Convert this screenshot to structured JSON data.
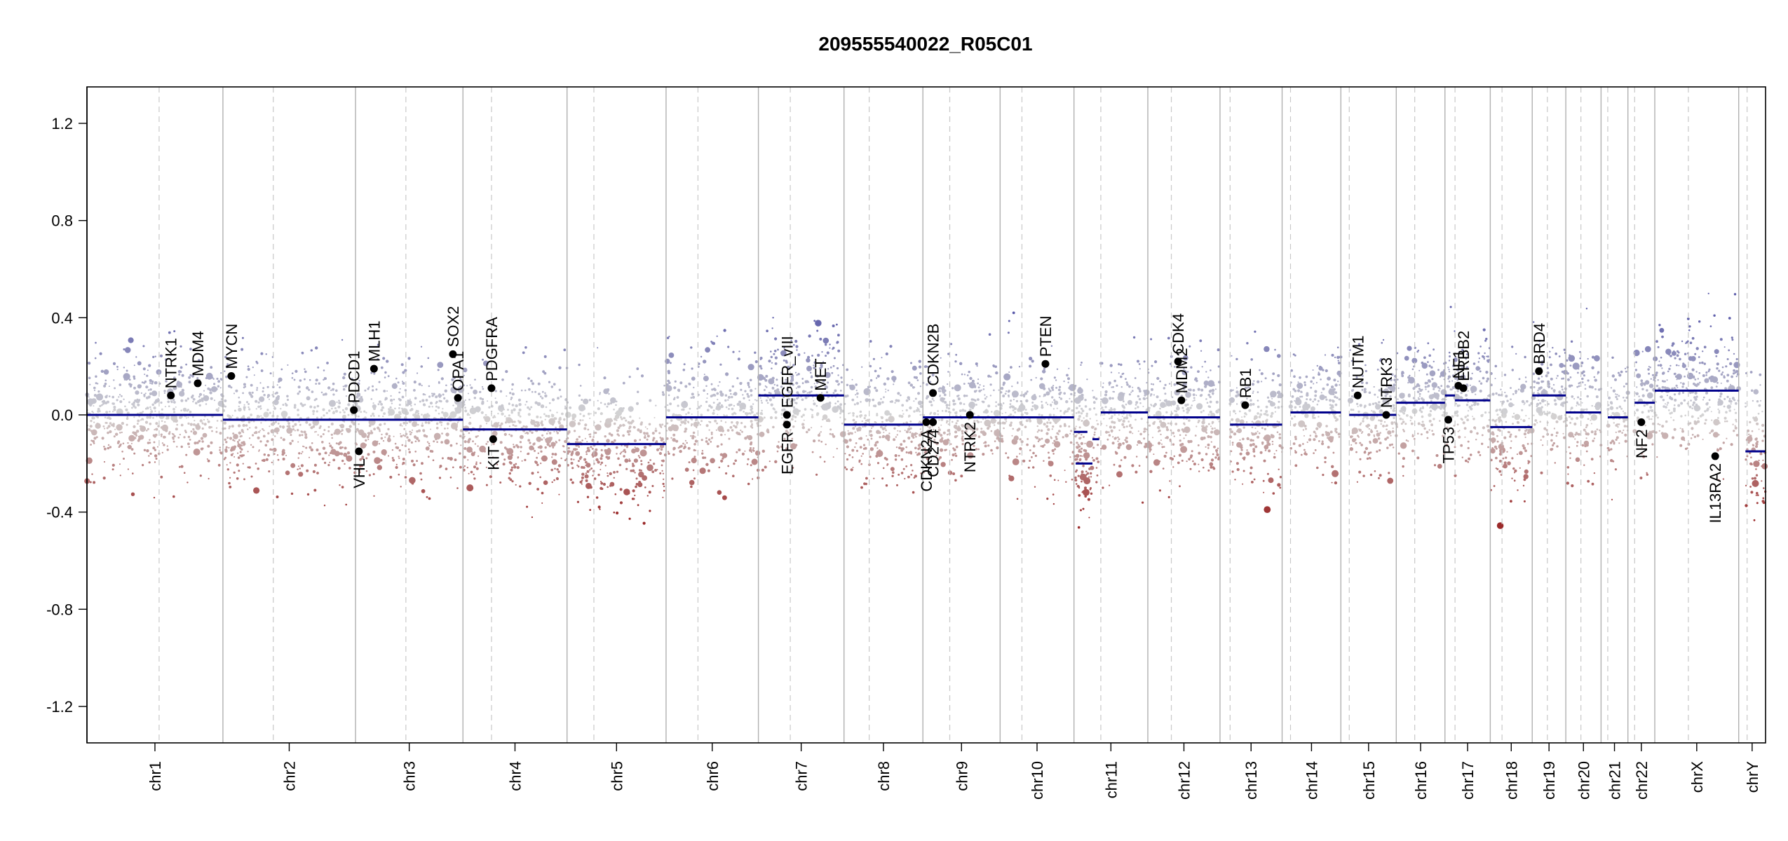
{
  "chart_data": {
    "type": "scatter",
    "subtype": "copy-number-variation-plot",
    "title": "209555540022_R05C01",
    "xlabel": "",
    "ylabel": "",
    "ylim": [
      -1.35,
      1.35
    ],
    "yticks": [
      -1.2,
      -0.8,
      -0.4,
      0.0,
      0.4,
      0.8,
      1.2
    ],
    "ytick_labels": [
      "-1.2",
      "-0.8",
      "-0.4",
      "0.0",
      "0.4",
      "0.8",
      "1.2"
    ],
    "grid": false,
    "colors": {
      "gain": "#5b5baa",
      "neutral": "#d4d4d4",
      "loss": "#9b2a2a",
      "segment": "#00008b",
      "gene_point": "#000000",
      "chr_divider": "#b0b0b0",
      "centromere": "#c8c8c8"
    },
    "chromosomes": [
      {
        "name": "chr1",
        "start": 0.0,
        "end": 0.081,
        "centromere": 0.043,
        "segments": [
          {
            "from": 0.0,
            "to": 0.081,
            "value": 0.0
          }
        ]
      },
      {
        "name": "chr2",
        "start": 0.081,
        "end": 0.16,
        "centromere": 0.111,
        "segments": [
          {
            "from": 0.081,
            "to": 0.16,
            "value": -0.02
          }
        ]
      },
      {
        "name": "chr3",
        "start": 0.16,
        "end": 0.224,
        "centromere": 0.19,
        "segments": [
          {
            "from": 0.16,
            "to": 0.224,
            "value": -0.02
          }
        ]
      },
      {
        "name": "chr4",
        "start": 0.224,
        "end": 0.286,
        "centromere": 0.241,
        "segments": [
          {
            "from": 0.224,
            "to": 0.286,
            "value": -0.06
          }
        ]
      },
      {
        "name": "chr5",
        "start": 0.286,
        "end": 0.345,
        "centromere": 0.302,
        "segments": [
          {
            "from": 0.286,
            "to": 0.345,
            "value": -0.12
          }
        ]
      },
      {
        "name": "chr6",
        "start": 0.345,
        "end": 0.4,
        "centromere": 0.364,
        "segments": [
          {
            "from": 0.345,
            "to": 0.4,
            "value": -0.01
          }
        ]
      },
      {
        "name": "chr7",
        "start": 0.4,
        "end": 0.451,
        "centromere": 0.419,
        "segments": [
          {
            "from": 0.4,
            "to": 0.451,
            "value": 0.08
          }
        ]
      },
      {
        "name": "chr8",
        "start": 0.451,
        "end": 0.498,
        "centromere": 0.466,
        "segments": [
          {
            "from": 0.451,
            "to": 0.498,
            "value": -0.04
          }
        ]
      },
      {
        "name": "chr9",
        "start": 0.498,
        "end": 0.544,
        "centromere": 0.514,
        "segments": [
          {
            "from": 0.498,
            "to": 0.544,
            "value": -0.01
          }
        ]
      },
      {
        "name": "chr10",
        "start": 0.544,
        "end": 0.588,
        "centromere": 0.557,
        "segments": [
          {
            "from": 0.544,
            "to": 0.588,
            "value": -0.01
          }
        ]
      },
      {
        "name": "chr11",
        "start": 0.588,
        "end": 0.632,
        "centromere": 0.604,
        "segments": [
          {
            "from": 0.588,
            "to": 0.596,
            "value": -0.07
          },
          {
            "from": 0.589,
            "to": 0.599,
            "value": -0.2
          },
          {
            "from": 0.599,
            "to": 0.603,
            "value": -0.1
          },
          {
            "from": 0.604,
            "to": 0.632,
            "value": 0.01
          }
        ]
      },
      {
        "name": "chr12",
        "start": 0.632,
        "end": 0.675,
        "centromere": 0.646,
        "segments": [
          {
            "from": 0.632,
            "to": 0.675,
            "value": -0.01
          }
        ]
      },
      {
        "name": "chr13",
        "start": 0.675,
        "end": 0.712,
        "centromere": 0.681,
        "segments": [
          {
            "from": 0.681,
            "to": 0.712,
            "value": -0.04
          }
        ]
      },
      {
        "name": "chr14",
        "start": 0.712,
        "end": 0.747,
        "centromere": 0.717,
        "segments": [
          {
            "from": 0.717,
            "to": 0.747,
            "value": 0.01
          }
        ]
      },
      {
        "name": "chr15",
        "start": 0.747,
        "end": 0.78,
        "centromere": 0.752,
        "segments": [
          {
            "from": 0.752,
            "to": 0.78,
            "value": 0.0
          }
        ]
      },
      {
        "name": "chr16",
        "start": 0.78,
        "end": 0.809,
        "centromere": 0.791,
        "segments": [
          {
            "from": 0.78,
            "to": 0.809,
            "value": 0.05
          }
        ]
      },
      {
        "name": "chr17",
        "start": 0.809,
        "end": 0.836,
        "centromere": 0.815,
        "segments": [
          {
            "from": 0.809,
            "to": 0.815,
            "value": 0.08
          },
          {
            "from": 0.815,
            "to": 0.836,
            "value": 0.06
          }
        ]
      },
      {
        "name": "chr18",
        "start": 0.836,
        "end": 0.861,
        "centromere": 0.843,
        "segments": [
          {
            "from": 0.836,
            "to": 0.861,
            "value": -0.05
          }
        ]
      },
      {
        "name": "chr19",
        "start": 0.861,
        "end": 0.881,
        "centromere": 0.87,
        "segments": [
          {
            "from": 0.861,
            "to": 0.881,
            "value": 0.08
          }
        ]
      },
      {
        "name": "chr20",
        "start": 0.881,
        "end": 0.902,
        "centromere": 0.89,
        "segments": [
          {
            "from": 0.881,
            "to": 0.902,
            "value": 0.01
          }
        ]
      },
      {
        "name": "chr21",
        "start": 0.902,
        "end": 0.918,
        "centromere": 0.906,
        "segments": [
          {
            "from": 0.906,
            "to": 0.918,
            "value": -0.01
          }
        ]
      },
      {
        "name": "chr22",
        "start": 0.918,
        "end": 0.934,
        "centromere": 0.922,
        "segments": [
          {
            "from": 0.922,
            "to": 0.934,
            "value": 0.05
          }
        ]
      },
      {
        "name": "chrX",
        "start": 0.934,
        "end": 0.984,
        "centromere": 0.954,
        "segments": [
          {
            "from": 0.934,
            "to": 0.984,
            "value": 0.1
          }
        ]
      },
      {
        "name": "chrY",
        "start": 0.984,
        "end": 1.0,
        "centromere": 0.989,
        "segments": [
          {
            "from": 0.988,
            "to": 1.0,
            "value": -0.15
          }
        ]
      }
    ],
    "genes": [
      {
        "name": "NTRK1",
        "x": 0.05,
        "y": 0.08,
        "label": "above"
      },
      {
        "name": "MDM4",
        "x": 0.066,
        "y": 0.13,
        "label": "above"
      },
      {
        "name": "MYCN",
        "x": 0.086,
        "y": 0.16,
        "label": "above"
      },
      {
        "name": "PDCD1",
        "x": 0.159,
        "y": 0.02,
        "label": "above"
      },
      {
        "name": "VHL",
        "x": 0.162,
        "y": -0.15,
        "label": "below"
      },
      {
        "name": "MLH1",
        "x": 0.171,
        "y": 0.19,
        "label": "above"
      },
      {
        "name": "SOX2",
        "x": 0.218,
        "y": 0.25,
        "label": "above"
      },
      {
        "name": "OPA1",
        "x": 0.221,
        "y": 0.07,
        "label": "above"
      },
      {
        "name": "PDGFRA",
        "x": 0.241,
        "y": 0.11,
        "label": "above"
      },
      {
        "name": "KIT",
        "x": 0.242,
        "y": -0.1,
        "label": "below"
      },
      {
        "name": "EGFR_vIII",
        "x": 0.417,
        "y": 0.0,
        "label": "above"
      },
      {
        "name": "EGFR",
        "x": 0.417,
        "y": -0.04,
        "label": "below"
      },
      {
        "name": "MET",
        "x": 0.437,
        "y": 0.07,
        "label": "above"
      },
      {
        "name": "CDKN2B",
        "x": 0.504,
        "y": 0.09,
        "label": "above"
      },
      {
        "name": "CDKN2A",
        "x": 0.5,
        "y": -0.03,
        "label": "below"
      },
      {
        "name": "CD274",
        "x": 0.504,
        "y": -0.03,
        "label": "below"
      },
      {
        "name": "NTRK2",
        "x": 0.526,
        "y": 0.0,
        "label": "below"
      },
      {
        "name": "PTEN",
        "x": 0.571,
        "y": 0.21,
        "label": "above"
      },
      {
        "name": "CDK4",
        "x": 0.65,
        "y": 0.22,
        "label": "above"
      },
      {
        "name": "MDM2",
        "x": 0.652,
        "y": 0.06,
        "label": "above"
      },
      {
        "name": "RB1",
        "x": 0.69,
        "y": 0.04,
        "label": "above"
      },
      {
        "name": "NUTM1",
        "x": 0.757,
        "y": 0.08,
        "label": "above"
      },
      {
        "name": "NTRK3",
        "x": 0.774,
        "y": 0.0,
        "label": "above"
      },
      {
        "name": "TP53",
        "x": 0.811,
        "y": -0.02,
        "label": "below"
      },
      {
        "name": "NF1",
        "x": 0.817,
        "y": 0.12,
        "label": "above"
      },
      {
        "name": "ERBB2",
        "x": 0.82,
        "y": 0.11,
        "label": "above"
      },
      {
        "name": "BRD4",
        "x": 0.865,
        "y": 0.18,
        "label": "above"
      },
      {
        "name": "NF2",
        "x": 0.926,
        "y": -0.03,
        "label": "below"
      },
      {
        "name": "IL13RA2",
        "x": 0.97,
        "y": -0.17,
        "label": "below"
      }
    ]
  }
}
